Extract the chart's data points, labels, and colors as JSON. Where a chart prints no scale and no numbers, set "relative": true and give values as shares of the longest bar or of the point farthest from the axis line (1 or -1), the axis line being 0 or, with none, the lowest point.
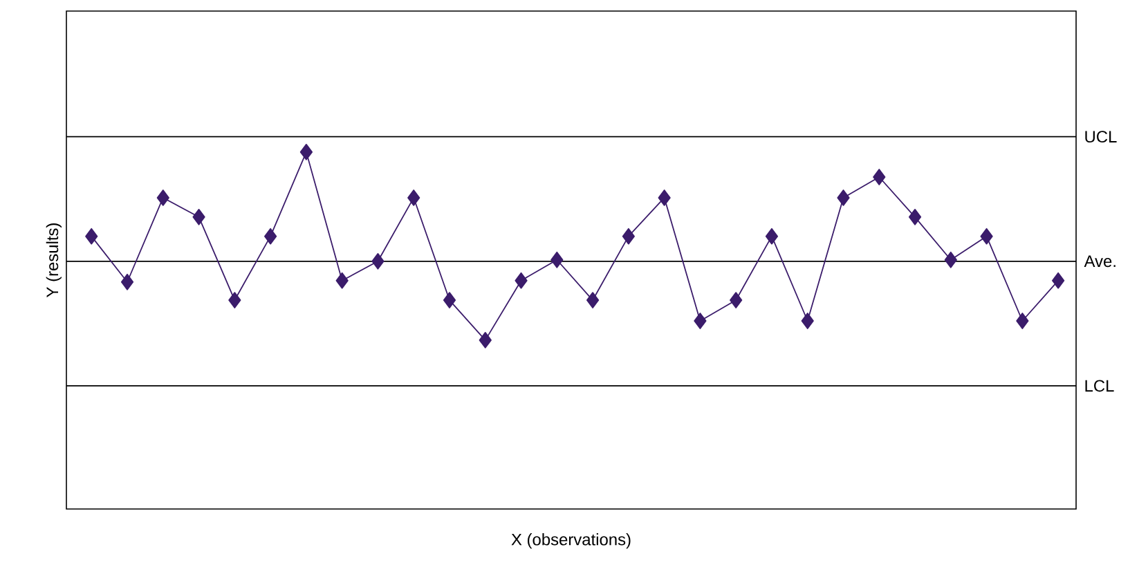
{
  "chart_data": {
    "type": "line",
    "xlabel": "X (observations)",
    "ylabel": "Y (results)",
    "relative": true,
    "marker": "diamond",
    "line_style": "solid",
    "color": "#3b1c6b",
    "categories": [
      null,
      null,
      null,
      null,
      null,
      null,
      null,
      null,
      null,
      null,
      null,
      null,
      null,
      null,
      null,
      null,
      null,
      null,
      null,
      null,
      null,
      null,
      null,
      null,
      null,
      null,
      null,
      null
    ],
    "values": [
      0.764,
      0.636,
      0.872,
      0.818,
      0.585,
      0.764,
      1,
      0.64,
      0.694,
      0.872,
      0.585,
      0.473,
      0.64,
      0.698,
      0.585,
      0.764,
      0.872,
      0.527,
      0.585,
      0.764,
      0.527,
      0.872,
      0.93,
      0.818,
      0.698,
      0.764,
      0.527,
      0.64
    ],
    "ref_lines": [
      {
        "axis": "y",
        "value": 1.043,
        "label": "UCL"
      },
      {
        "axis": "y",
        "value": 0.694,
        "label": "Ave."
      },
      {
        "axis": "y",
        "value": 0.345,
        "label": "LCL"
      }
    ]
  }
}
